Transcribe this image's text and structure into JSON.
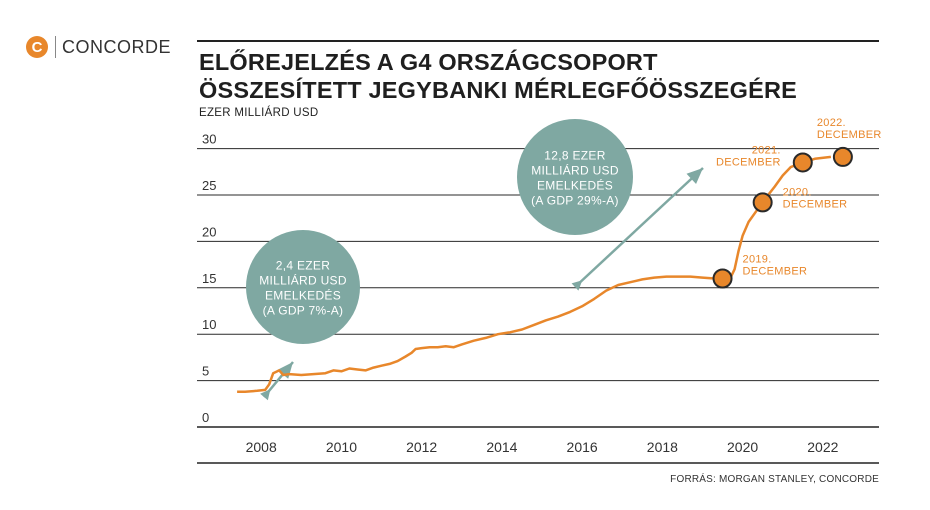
{
  "brand": {
    "logo_mark": "C",
    "name": "CONCORDE",
    "color": "#e8872b"
  },
  "title_line1": "ELŐREJELZÉS A G4 ORSZÁGCSOPORT",
  "title_line2": "ÖSSZESÍTETT JEGYBANKI MÉRLEGFŐÖSSZEGÉRE",
  "subtitle": "EZER MILLIÁRD USD",
  "source": "FORRÁS: MORGAN STANLEY, CONCORDE",
  "chart_data": {
    "type": "line",
    "title": "ELŐREJELZÉS A G4 ORSZÁGCSOPORT ÖSSZESÍTETT JEGYBANKI MÉRLEGFŐÖSSZEGÉRE",
    "ylabel": "EZER MILLIÁRD USD",
    "xlim": [
      2006.4,
      2023.4
    ],
    "ylim": [
      0,
      32
    ],
    "yticks": [
      0,
      5,
      10,
      15,
      20,
      25,
      30
    ],
    "ytick_labels": [
      "0",
      "5",
      "10",
      "15",
      "20",
      "25",
      "30"
    ],
    "xticks": [
      2008,
      2010,
      2012,
      2014,
      2016,
      2018,
      2020,
      2022
    ],
    "xtick_labels": [
      "2008",
      "2010",
      "2012",
      "2014",
      "2016",
      "2018",
      "2020",
      "2022"
    ],
    "grid": true,
    "colors": {
      "line": "#e8872b",
      "marker_stroke": "#2a2a2a",
      "bubble": "#7fa8a2",
      "grid": "#2a2a2a"
    },
    "series": [
      {
        "color": "#e8872b",
        "points": [
          [
            2007.4,
            3.8
          ],
          [
            2007.6,
            3.8
          ],
          [
            2007.9,
            3.9
          ],
          [
            2008.1,
            4.0
          ],
          [
            2008.2,
            4.6
          ],
          [
            2008.3,
            5.8
          ],
          [
            2008.45,
            6.1
          ],
          [
            2008.55,
            5.6
          ],
          [
            2008.7,
            5.7
          ],
          [
            2009.0,
            5.6
          ],
          [
            2009.3,
            5.7
          ],
          [
            2009.6,
            5.8
          ],
          [
            2009.8,
            6.1
          ],
          [
            2010.0,
            6.0
          ],
          [
            2010.2,
            6.3
          ],
          [
            2010.4,
            6.2
          ],
          [
            2010.6,
            6.1
          ],
          [
            2010.8,
            6.4
          ],
          [
            2011.0,
            6.6
          ],
          [
            2011.2,
            6.8
          ],
          [
            2011.4,
            7.1
          ],
          [
            2011.6,
            7.6
          ],
          [
            2011.75,
            8.0
          ],
          [
            2011.85,
            8.4
          ],
          [
            2012.0,
            8.5
          ],
          [
            2012.2,
            8.6
          ],
          [
            2012.4,
            8.6
          ],
          [
            2012.6,
            8.7
          ],
          [
            2012.8,
            8.6
          ],
          [
            2013.0,
            8.9
          ],
          [
            2013.3,
            9.3
          ],
          [
            2013.6,
            9.6
          ],
          [
            2013.9,
            10.0
          ],
          [
            2014.2,
            10.2
          ],
          [
            2014.5,
            10.5
          ],
          [
            2014.8,
            11.0
          ],
          [
            2015.1,
            11.5
          ],
          [
            2015.4,
            11.9
          ],
          [
            2015.7,
            12.4
          ],
          [
            2016.0,
            13.0
          ],
          [
            2016.3,
            13.8
          ],
          [
            2016.6,
            14.7
          ],
          [
            2016.9,
            15.3
          ],
          [
            2017.2,
            15.6
          ],
          [
            2017.5,
            15.9
          ],
          [
            2017.8,
            16.1
          ],
          [
            2018.1,
            16.2
          ],
          [
            2018.4,
            16.2
          ],
          [
            2018.7,
            16.2
          ],
          [
            2019.0,
            16.1
          ],
          [
            2019.3,
            16.0
          ],
          [
            2019.5,
            16.0
          ],
          [
            2019.7,
            16.1
          ],
          [
            2019.8,
            17.0
          ],
          [
            2019.9,
            19.0
          ],
          [
            2020.0,
            20.6
          ],
          [
            2020.15,
            22.1
          ],
          [
            2020.35,
            23.3
          ],
          [
            2020.5,
            24.2
          ],
          [
            2020.6,
            24.8
          ],
          [
            2020.8,
            25.9
          ],
          [
            2021.0,
            27.1
          ],
          [
            2021.2,
            28.0
          ],
          [
            2021.5,
            28.5
          ],
          [
            2021.8,
            28.9
          ],
          [
            2022.2,
            29.1
          ]
        ]
      }
    ],
    "markers": [
      {
        "x": 2019.5,
        "y": 16.0,
        "label_line1": "2019.",
        "label_line2": "DECEMBER"
      },
      {
        "x": 2020.5,
        "y": 24.2,
        "label_line1": "2020.",
        "label_line2": "DECEMBER"
      },
      {
        "x": 2021.5,
        "y": 28.5,
        "label_line1": "2021.",
        "label_line2": "DECEMBER"
      },
      {
        "x": 2022.5,
        "y": 29.1,
        "label_line1": "2022.",
        "label_line2": "DECEMBER"
      }
    ],
    "annotations": [
      {
        "lines": [
          "2,4 EZER",
          "MILLIÁRD USD",
          "EMELKEDÉS",
          "(A GDP 7%-A)"
        ]
      },
      {
        "lines": [
          "12,8 EZER",
          "MILLIÁRD USD",
          "EMELKEDÉS",
          "(A GDP 29%-A)"
        ]
      }
    ]
  }
}
